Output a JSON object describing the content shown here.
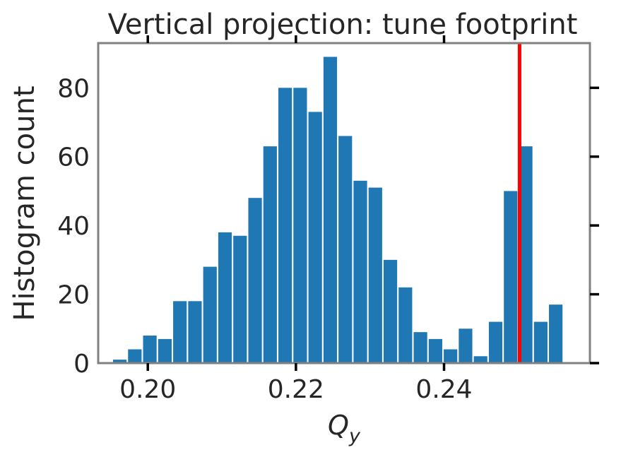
{
  "chart_data": {
    "type": "bar",
    "title": "Vertical projection: tune footprint",
    "xlabel": "Q",
    "xlabel_sub": "y",
    "ylabel": "Histogram count",
    "xlim": [
      0.1933,
      0.2597
    ],
    "ylim": [
      0,
      93
    ],
    "xticks": [
      0.2,
      0.22,
      0.24
    ],
    "xtick_labels": [
      "0.20",
      "0.22",
      "0.24"
    ],
    "yticks": [
      0,
      20,
      40,
      60,
      80
    ],
    "ytick_labels": [
      "0",
      "20",
      "40",
      "60",
      "80"
    ],
    "bin_start": 0.1952,
    "bin_width": 0.00203,
    "values": [
      1,
      4,
      8,
      7,
      18,
      18,
      28,
      38,
      37,
      48,
      63,
      80,
      80,
      73,
      89,
      66,
      53,
      51,
      30,
      22,
      9,
      7,
      4,
      10,
      2,
      12,
      50,
      63,
      12,
      17
    ],
    "bar_color": "#1f77b4",
    "vline": {
      "x": 0.2502,
      "color": "#ff0000"
    },
    "grid": false,
    "legend": "none"
  }
}
